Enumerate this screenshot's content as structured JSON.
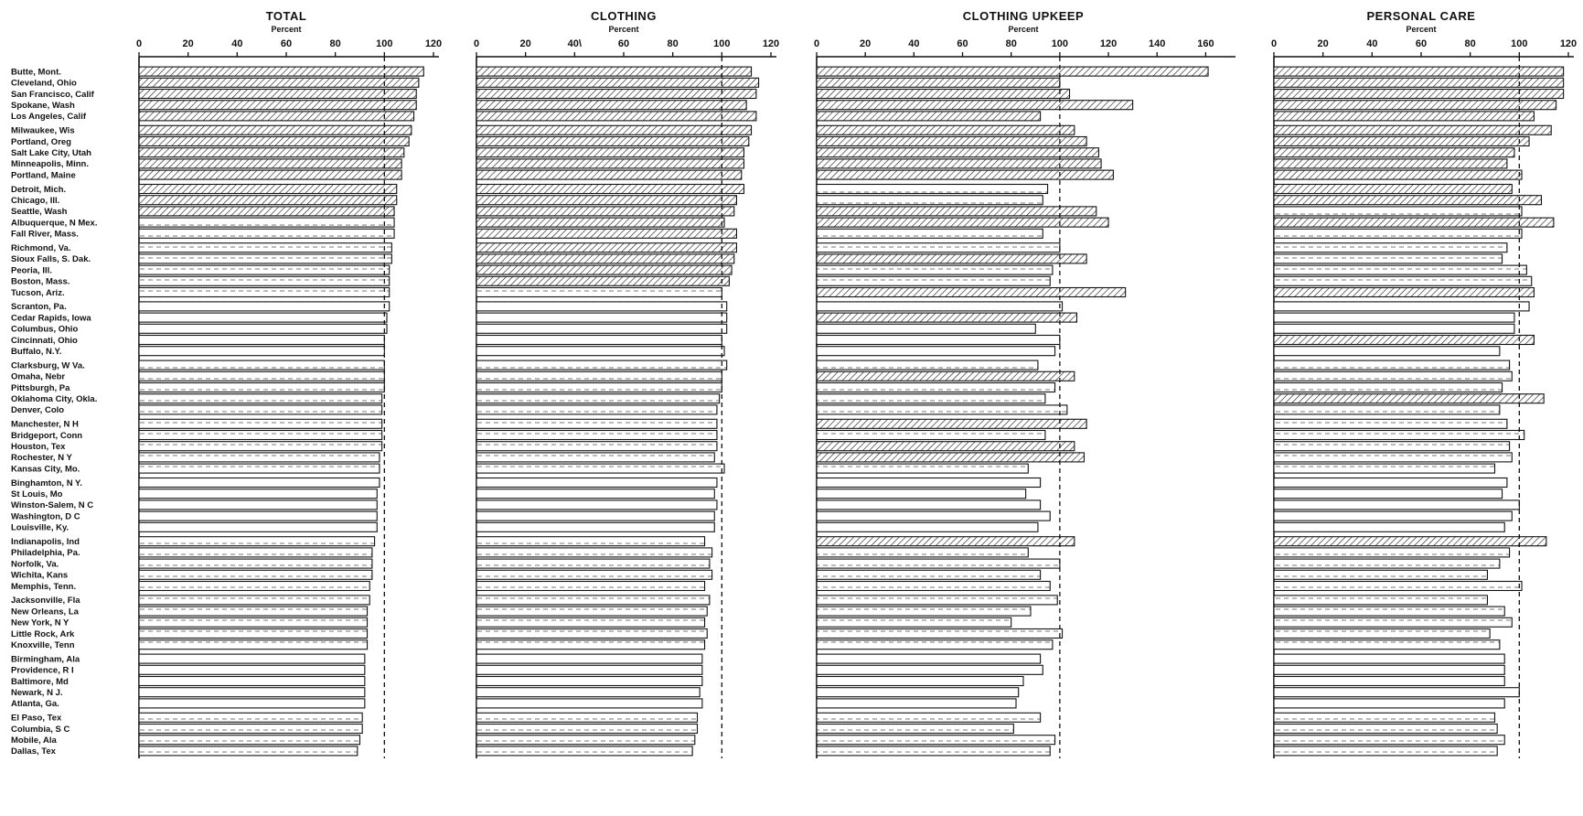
{
  "chart_data": {
    "type": "bar",
    "orientation": "horizontal",
    "y_unit": "Percent",
    "reference_value": 100,
    "categories": [
      "Butte, Mont.",
      "Cleveland, Ohio",
      "San Francisco, Calif",
      "Spokane, Wash",
      "Los Angeles, Calif",
      "Milwaukee, Wis",
      "Portland, Oreg",
      "Salt Lake City, Utah",
      "Minneapolis, Minn.",
      "Portland, Maine",
      "Detroit, Mich.",
      "Chicago, Ill.",
      "Seattle, Wash",
      "Albuquerque, N Mex.",
      "Fall River, Mass.",
      "Richmond, Va.",
      "Sioux Falls, S. Dak.",
      "Peoria, Ill.",
      "Boston, Mass.",
      "Tucson, Ariz.",
      "Scranton, Pa.",
      "Cedar Rapids, Iowa",
      "Columbus, Ohio",
      "Cincinnati, Ohio",
      "Buffalo, N.Y.",
      "Clarksburg, W Va.",
      "Omaha, Nebr",
      "Pittsburgh, Pa",
      "Oklahoma City, Okla.",
      "Denver, Colo",
      "Manchester, N H",
      "Bridgeport, Conn",
      "Houston, Tex",
      "Rochester, N Y",
      "Kansas City, Mo.",
      "Binghamton, N Y.",
      "St Louis, Mo",
      "Winston-Salem, N C",
      "Washington, D C",
      "Louisville, Ky.",
      "Indianapolis, Ind",
      "Philadelphia, Pa.",
      "Norfolk, Va.",
      "Wichita, Kans",
      "Memphis, Tenn.",
      "Jacksonville, Fla",
      "New Orleans, La",
      "New York, N Y",
      "Little Rock, Ark",
      "Knoxville, Tenn",
      "Birmingham, Ala",
      "Providence, R I",
      "Baltimore, Md",
      "Newark, N J.",
      "Atlanta, Ga.",
      "El Paso, Tex",
      "Columbia, S C",
      "Mobile, Ala",
      "Dallas, Tex"
    ],
    "panels": [
      {
        "title": "TOTAL",
        "unit": "Percent",
        "xlim": [
          0,
          120
        ],
        "ticks": [
          "0",
          "20",
          "40",
          "60",
          "80",
          "100",
          "120"
        ],
        "values": [
          116,
          114,
          113,
          113,
          112,
          111,
          110,
          108,
          107,
          107,
          105,
          105,
          104,
          104,
          104,
          103,
          103,
          102,
          102,
          102,
          102,
          101,
          101,
          100,
          100,
          100,
          100,
          100,
          99,
          99,
          99,
          99,
          99,
          98,
          98,
          98,
          97,
          97,
          97,
          97,
          96,
          95,
          95,
          95,
          94,
          94,
          93,
          93,
          93,
          93,
          92,
          92,
          92,
          92,
          92,
          91,
          91,
          90,
          89
        ]
      },
      {
        "title": "CLOTHING",
        "unit": "Percent",
        "xlim": [
          0,
          120
        ],
        "ticks": [
          "0",
          "20",
          "40\\",
          "60",
          "80",
          "100",
          "120"
        ],
        "values": [
          112,
          115,
          114,
          110,
          114,
          112,
          111,
          109,
          109,
          108,
          109,
          106,
          105,
          101,
          106,
          106,
          105,
          104,
          103,
          100,
          102,
          102,
          102,
          100,
          101,
          102,
          100,
          100,
          99,
          98,
          98,
          98,
          98,
          97,
          101,
          98,
          97,
          98,
          97,
          97,
          93,
          96,
          95,
          96,
          93,
          95,
          94,
          93,
          94,
          93,
          92,
          92,
          92,
          91,
          92,
          90,
          90,
          89,
          88
        ]
      },
      {
        "title": "CLOTHING UPKEEP",
        "unit": "Percent",
        "xlim": [
          0,
          170
        ],
        "ticks": [
          "0",
          "20",
          "40",
          "60",
          "80",
          "100",
          "120",
          "140",
          "160"
        ],
        "values": [
          161,
          100,
          104,
          130,
          92,
          106,
          111,
          116,
          117,
          122,
          95,
          93,
          115,
          120,
          93,
          100,
          111,
          97,
          96,
          127,
          101,
          107,
          90,
          100,
          98,
          91,
          106,
          98,
          94,
          103,
          111,
          94,
          106,
          110,
          87,
          92,
          86,
          92,
          96,
          91,
          106,
          87,
          100,
          92,
          96,
          99,
          88,
          80,
          101,
          97,
          92,
          93,
          85,
          83,
          82,
          92,
          81,
          98,
          96
        ]
      },
      {
        "title": "PERSONAL CARE",
        "unit": "Percent",
        "xlim": [
          0,
          120
        ],
        "ticks": [
          "0",
          "20",
          "40",
          "60",
          "80",
          "100",
          "120"
        ],
        "values": [
          118,
          118,
          118,
          115,
          106,
          113,
          104,
          98,
          95,
          101,
          97,
          109,
          101,
          114,
          101,
          95,
          93,
          103,
          105,
          106,
          104,
          98,
          98,
          106,
          92,
          96,
          97,
          93,
          110,
          92,
          95,
          102,
          96,
          97,
          90,
          95,
          93,
          100,
          97,
          94,
          111,
          96,
          92,
          87,
          101,
          87,
          94,
          97,
          88,
          92,
          94,
          94,
          94,
          100,
          94,
          90,
          91,
          94,
          91
        ]
      }
    ]
  }
}
